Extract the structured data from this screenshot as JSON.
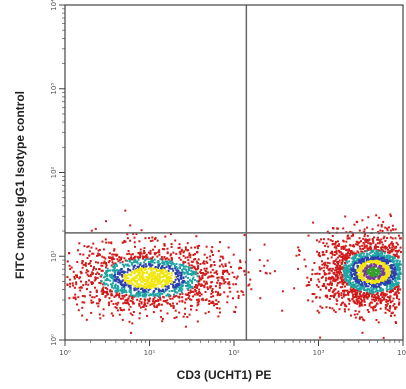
{
  "chart_data": {
    "type": "scatter",
    "subtype": "flow-cytometry-density-dot-plot",
    "title": "",
    "xlabel": "CD3 (UCHT1) PE",
    "ylabel": "FITC mouse IgG1 Isotype control",
    "x_scale": "log",
    "y_scale": "log",
    "xlim": [
      1,
      10000
    ],
    "ylim": [
      1,
      10000
    ],
    "x_ticks": [
      {
        "value": 1,
        "label": "10⁰"
      },
      {
        "value": 10,
        "label": "10¹"
      },
      {
        "value": 100,
        "label": "10²"
      },
      {
        "value": 1000,
        "label": "10³"
      },
      {
        "value": 10000,
        "label": "10⁴"
      }
    ],
    "y_ticks": [
      {
        "value": 1,
        "label": "10⁰"
      },
      {
        "value": 10,
        "label": "10¹"
      },
      {
        "value": 100,
        "label": "10²"
      },
      {
        "value": 1000,
        "label": "10³"
      },
      {
        "value": 10000,
        "label": "10⁴"
      }
    ],
    "quadrant_gate": {
      "x": 140,
      "y": 19
    },
    "grid": false,
    "density_colors": [
      "#d11a1a",
      "#1fa3a3",
      "#2b3fae",
      "#f2e60f",
      "#7a3a9a",
      "#33a02c"
    ],
    "populations": [
      {
        "center": {
          "x": 10,
          "y": 5.5
        },
        "spread_decades": {
          "x": 0.5,
          "y": 0.2
        },
        "relative_density": 0.72
      },
      {
        "center": {
          "x": 4500,
          "y": 6.5
        },
        "spread_decades": {
          "x": 0.32,
          "y": 0.22
        },
        "relative_density": 1.0
      }
    ]
  }
}
